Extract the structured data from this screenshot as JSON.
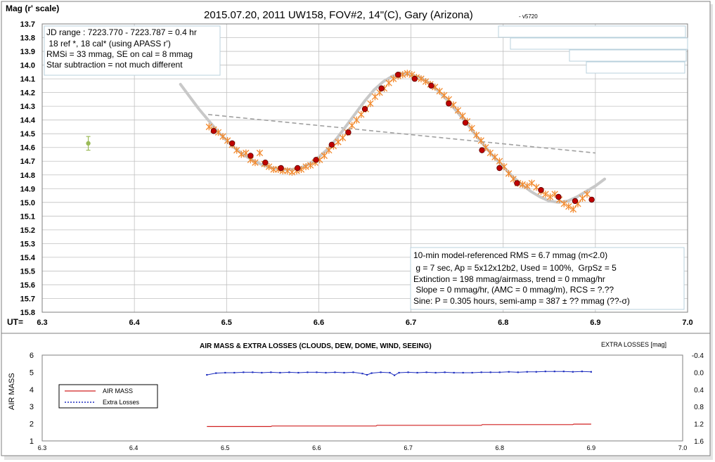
{
  "colors": {
    "marker_orange": "#f28a2e",
    "point_red": "#c00000",
    "fit_gray": "#c8c8c8",
    "trend_gray": "#a0a0a0",
    "airmass_red": "#d02020",
    "losses_blue": "#1f2fbf",
    "comp_green": "#9bbb59",
    "grid": "#c0c0c0"
  },
  "chart_data": [
    {
      "type": "scatter",
      "title": "2015.07.20, 2011 UW158, FOV#2, 14\"(C), Gary (Arizona)",
      "title_suffix": "- v5720",
      "ylabel": "Mag (r' scale)",
      "xlabel": "UT=",
      "xlim": [
        6.3,
        7.0
      ],
      "ylim": [
        13.7,
        15.8
      ],
      "y_inverted": true,
      "grid": true,
      "x_ticks": [
        "6.3",
        "6.4",
        "6.5",
        "6.6",
        "6.7",
        "6.8",
        "6.9",
        "7.0"
      ],
      "y_ticks": [
        "13.7",
        "13.8",
        "13.9",
        "14.0",
        "14.1",
        "14.2",
        "14.3",
        "14.4",
        "14.5",
        "14.6",
        "14.7",
        "14.8",
        "14.9",
        "15.0",
        "15.1",
        "15.2",
        "15.3",
        "15.4",
        "15.5",
        "15.6",
        "15.7",
        "15.8"
      ],
      "info_box_1": [
        "JD range : 7223.770 - 7223.787 = 0.4 hr",
        " 18 ref *, 18 cal* (using APASS r')",
        "RMSi = 33 mmag, SE on cal = 8 mmag",
        "Star subtraction = not much different"
      ],
      "info_box_2": [
        "10-min model-referenced RMS = 6.7 mmag (m<2.0)",
        " g = 7 sec, Ap = 5x12x12b2, Used = 100%,  GrpSz = 5",
        "Extinction = 198 mmag/airmass, trend = 0 mmag/hr",
        " Slope = 0 mmag/hr, (AMC = 0 mmag/m), RCS = ?.??",
        "Sine: P = 0.305 hours, semi-amp = 387 ± ?? mmag (??-σ)"
      ],
      "series": [
        {
          "name": "",
          "marker": "asterisk",
          "x": [
            6.481,
            6.486,
            6.491,
            6.496,
            6.501,
            6.506,
            6.511,
            6.516,
            6.521,
            6.526,
            6.531,
            6.536,
            6.541,
            6.546,
            6.551,
            6.556,
            6.561,
            6.566,
            6.571,
            6.576,
            6.581,
            6.586,
            6.591,
            6.596,
            6.601,
            6.606,
            6.611,
            6.616,
            6.621,
            6.626,
            6.631,
            6.636,
            6.641,
            6.646,
            6.651,
            6.656,
            6.661,
            6.666,
            6.671,
            6.676,
            6.681,
            6.686,
            6.691,
            6.696,
            6.701,
            6.706,
            6.711,
            6.716,
            6.721,
            6.726,
            6.731,
            6.736,
            6.741,
            6.746,
            6.751,
            6.756,
            6.761,
            6.766,
            6.771,
            6.776,
            6.781,
            6.786,
            6.791,
            6.796,
            6.801,
            6.806,
            6.811,
            6.816,
            6.821,
            6.826,
            6.831,
            6.836,
            6.841,
            6.846,
            6.851,
            6.856,
            6.861,
            6.866,
            6.871,
            6.876,
            6.881,
            6.886,
            6.891
          ],
          "y": [
            14.45,
            14.47,
            14.49,
            14.52,
            14.55,
            14.58,
            14.62,
            14.65,
            14.64,
            14.69,
            14.71,
            14.64,
            14.72,
            14.74,
            14.76,
            14.76,
            14.77,
            14.77,
            14.78,
            14.77,
            14.76,
            14.74,
            14.73,
            14.71,
            14.69,
            14.66,
            14.62,
            14.59,
            14.56,
            14.53,
            14.49,
            14.44,
            14.4,
            14.36,
            14.32,
            14.28,
            14.23,
            14.2,
            14.17,
            14.13,
            14.1,
            14.08,
            14.07,
            14.06,
            14.07,
            14.09,
            14.1,
            14.12,
            14.14,
            14.16,
            14.19,
            14.22,
            14.25,
            14.29,
            14.33,
            14.37,
            14.41,
            14.46,
            14.51,
            14.55,
            14.6,
            14.64,
            14.67,
            14.7,
            14.74,
            14.79,
            14.83,
            14.86,
            14.87,
            14.88,
            14.86,
            14.89,
            14.92,
            14.94,
            14.96,
            14.94,
            14.98,
            15.01,
            15.03,
            15.05,
            15.01,
            14.97,
            14.94
          ]
        },
        {
          "name": "",
          "marker": "circle",
          "x": [
            6.486,
            6.506,
            6.526,
            6.542,
            6.559,
            6.577,
            6.597,
            6.614,
            6.632,
            6.65,
            6.668,
            6.686,
            6.704,
            6.722,
            6.741,
            6.759,
            6.777,
            6.796,
            6.815,
            6.841,
            6.86,
            6.878,
            6.896
          ],
          "y": [
            14.48,
            14.57,
            14.66,
            14.71,
            14.75,
            14.75,
            14.69,
            14.58,
            14.49,
            14.32,
            14.17,
            14.07,
            14.1,
            14.15,
            14.28,
            14.42,
            14.62,
            14.75,
            14.86,
            14.91,
            14.96,
            14.99,
            14.98
          ]
        },
        {
          "name": "",
          "marker": "errorbar",
          "x": [
            6.35
          ],
          "y": [
            14.57
          ],
          "err": [
            0.05
          ]
        }
      ],
      "model_fit": {
        "x": [
          6.45,
          6.46,
          6.47,
          6.48,
          6.49,
          6.5,
          6.51,
          6.52,
          6.53,
          6.54,
          6.55,
          6.56,
          6.57,
          6.58,
          6.59,
          6.6,
          6.61,
          6.62,
          6.63,
          6.64,
          6.65,
          6.66,
          6.67,
          6.68,
          6.69,
          6.7,
          6.71,
          6.72,
          6.73,
          6.74,
          6.75,
          6.76,
          6.77,
          6.78,
          6.79,
          6.8,
          6.81,
          6.82,
          6.83,
          6.84,
          6.85,
          6.86,
          6.87,
          6.88,
          6.89,
          6.9,
          6.91
        ],
        "y": [
          14.14,
          14.23,
          14.32,
          14.4,
          14.48,
          14.55,
          14.61,
          14.66,
          14.7,
          14.73,
          14.75,
          14.76,
          14.76,
          14.75,
          14.72,
          14.67,
          14.61,
          14.53,
          14.44,
          14.35,
          14.26,
          14.18,
          14.12,
          14.08,
          14.06,
          14.07,
          14.09,
          14.13,
          14.19,
          14.26,
          14.34,
          14.42,
          14.51,
          14.59,
          14.67,
          14.74,
          14.81,
          14.87,
          14.92,
          14.96,
          14.99,
          15.0,
          14.99,
          14.96,
          14.92,
          14.88,
          14.83
        ]
      },
      "trend_line": {
        "x": [
          6.48,
          6.9
        ],
        "y": [
          14.36,
          14.64
        ]
      },
      "legend_boxes": 4
    },
    {
      "type": "line",
      "title": "AIR MASS & EXTRA LOSSES (CLOUDS, DEW, DOME, WIND, SEEING)",
      "ylabel": "AIR MASS",
      "y2label": "EXTRA LOSSES [mag]",
      "xlim": [
        6.3,
        7.0
      ],
      "ylim": [
        1,
        6
      ],
      "y2lim": [
        -0.4,
        1.6
      ],
      "grid": false,
      "legend_position": "left",
      "x_ticks": [
        "6.3",
        "6.4",
        "6.5",
        "6.6",
        "6.7",
        "6.8",
        "6.9",
        "7.0"
      ],
      "y_ticks": [
        "1",
        "2",
        "3",
        "4",
        "5",
        "6"
      ],
      "y2_ticks": [
        "-0.4",
        "0.0",
        "0.4",
        "0.8",
        "1.2",
        "1.6"
      ],
      "series": [
        {
          "name": "AIR MASS",
          "axis": "left",
          "x": [
            6.48,
            6.55,
            6.551,
            6.665,
            6.666,
            6.78,
            6.781,
            6.88,
            6.881,
            6.9
          ],
          "y": [
            1.84,
            1.84,
            1.87,
            1.87,
            1.91,
            1.91,
            1.95,
            1.95,
            1.98,
            1.98
          ]
        },
        {
          "name": "Extra Losses",
          "axis": "right",
          "x": [
            6.48,
            6.49,
            6.5,
            6.51,
            6.52,
            6.53,
            6.54,
            6.55,
            6.56,
            6.57,
            6.58,
            6.59,
            6.6,
            6.61,
            6.62,
            6.63,
            6.64,
            6.65,
            6.655,
            6.66,
            6.67,
            6.68,
            6.685,
            6.69,
            6.7,
            6.71,
            6.72,
            6.73,
            6.74,
            6.75,
            6.76,
            6.77,
            6.78,
            6.79,
            6.8,
            6.81,
            6.82,
            6.83,
            6.84,
            6.85,
            6.86,
            6.87,
            6.88,
            6.89,
            6.9
          ],
          "y": [
            0.06,
            0.02,
            0.01,
            0.01,
            0.0,
            0.0,
            0.01,
            0.0,
            0.01,
            0.0,
            0.01,
            0.0,
            0.0,
            0.01,
            0.0,
            0.01,
            0.0,
            0.03,
            0.06,
            0.02,
            0.0,
            0.01,
            0.07,
            0.01,
            0.0,
            0.01,
            0.0,
            0.01,
            0.0,
            0.01,
            0.01,
            0.01,
            0.0,
            0.0,
            0.0,
            -0.01,
            0.0,
            -0.01,
            -0.01,
            -0.02,
            -0.02,
            -0.02,
            -0.01,
            -0.02,
            -0.01
          ]
        }
      ]
    }
  ]
}
